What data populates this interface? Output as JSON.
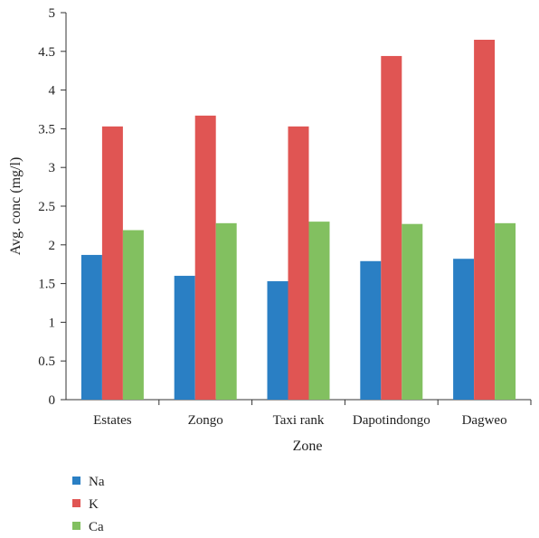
{
  "chart_data": {
    "type": "bar",
    "categories": [
      "Estates",
      "Zongo",
      "Taxi rank",
      "Dapotindongo",
      "Dagweo"
    ],
    "series": [
      {
        "name": "Na",
        "color": "#2a7fc4",
        "values": [
          1.87,
          1.6,
          1.53,
          1.79,
          1.82
        ]
      },
      {
        "name": "K",
        "color": "#e05553",
        "values": [
          3.53,
          3.67,
          3.53,
          4.44,
          4.65
        ]
      },
      {
        "name": "Ca",
        "color": "#82c060",
        "values": [
          2.19,
          2.28,
          2.3,
          2.27,
          2.28
        ]
      }
    ],
    "xlabel": "Zone",
    "ylabel": "Avg. conc (mg/l)",
    "ylim": [
      0,
      5
    ],
    "yticks": [
      0,
      0.5,
      1,
      1.5,
      2,
      2.5,
      3,
      3.5,
      4,
      4.5,
      5
    ],
    "ytick_labels": [
      "0",
      "0.5",
      "1",
      "1.5",
      "2",
      "2.5",
      "3",
      "3.5",
      "4",
      "4.5",
      "5"
    ],
    "grid": false,
    "legend_position": "bottom-left"
  }
}
